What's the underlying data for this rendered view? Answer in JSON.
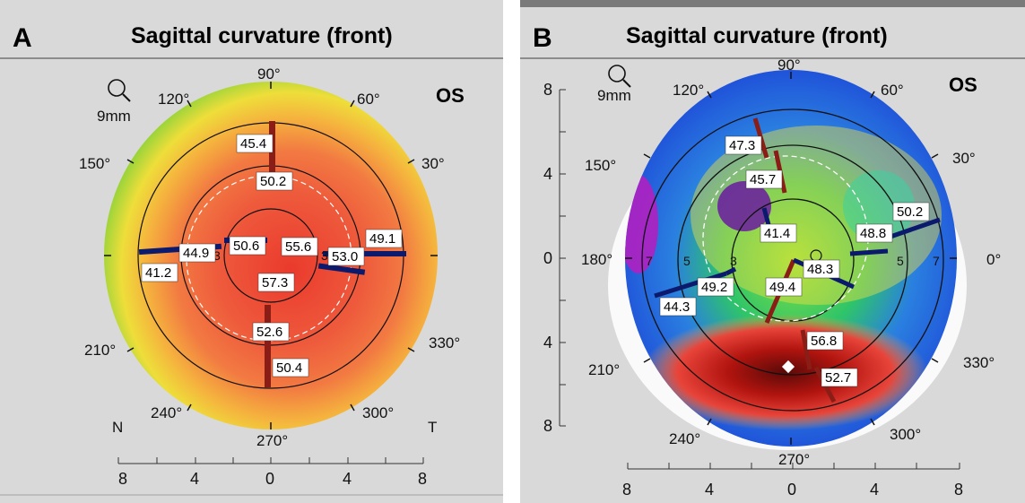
{
  "panels": [
    {
      "label": "A",
      "title": "Sagittal curvature (front)",
      "eye": "OS",
      "zoom": "9mm",
      "corners": {
        "left": "N",
        "right": "T"
      },
      "angles": [
        "90°",
        "60°",
        "30°",
        "330°",
        "300°",
        "270°",
        "240°",
        "210°",
        "150°",
        "120°"
      ],
      "ring_labels": [
        "3",
        "3"
      ],
      "x_ticks": [
        "8",
        "4",
        "0",
        "4",
        "8"
      ],
      "values": [
        "45.4",
        "50.2",
        "44.9",
        "50.6",
        "55.6",
        "53.0",
        "49.1",
        "41.2",
        "57.3",
        "52.6",
        "50.4"
      ]
    },
    {
      "label": "B",
      "title": "Sagittal curvature (front)",
      "eye": "OS",
      "zoom": "9mm",
      "angles": [
        "90°",
        "60°",
        "30°",
        "0°",
        "330°",
        "300°",
        "270°",
        "240°",
        "210°",
        "180°",
        "150°",
        "120°"
      ],
      "ring_labels": [
        "7",
        "5",
        "3",
        "5",
        "7"
      ],
      "x_ticks": [
        "8",
        "4",
        "0",
        "4",
        "8"
      ],
      "y_ticks": [
        "8",
        "4",
        "0",
        "4",
        "8"
      ],
      "values": [
        "47.3",
        "45.7",
        "41.4",
        "50.2",
        "48.8",
        "48.3",
        "49.2",
        "49.4",
        "44.3",
        "56.8",
        "52.7"
      ]
    }
  ],
  "colors": {
    "background": "#d9d9d9",
    "steep_red": "#e8443a",
    "flat_blue": "#1b3fd6",
    "marker_blue": "#0c1a6e",
    "marker_red": "#8a1e16"
  }
}
